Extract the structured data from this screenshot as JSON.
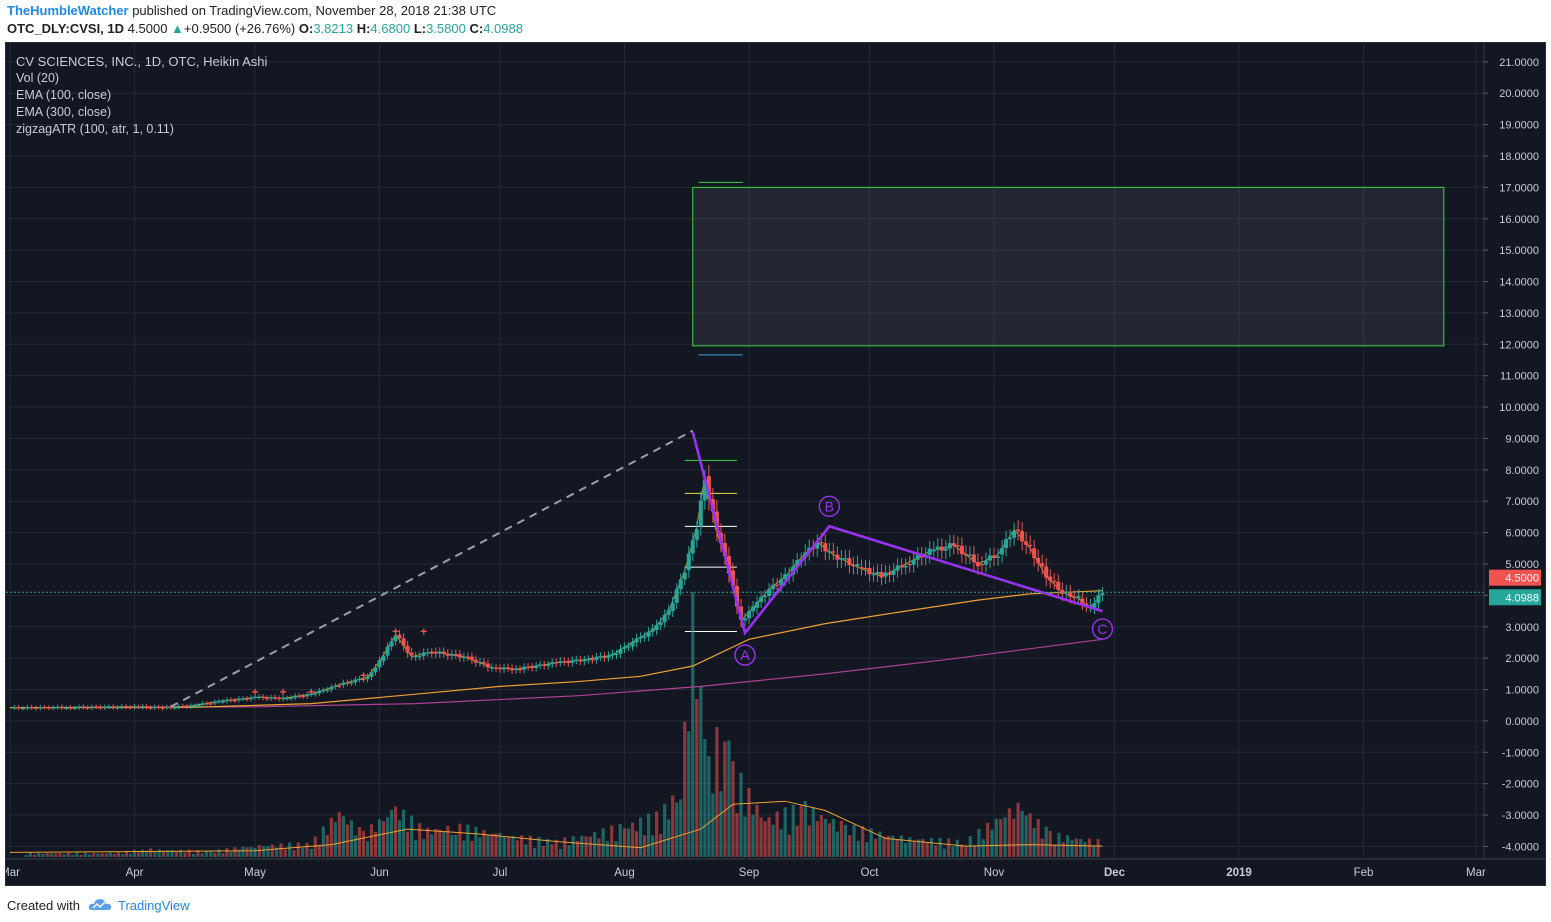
{
  "header": {
    "author": "TheHumbleWatcher",
    "published_text": " published on TradingView.com, November 28, 2018 21:38 UTC",
    "symbol": "OTC_DLY:CVSI, 1D",
    "last": "4.5000",
    "up_arrow": "▲",
    "change": "+0.9500 (+26.76%)",
    "o_label": "O:",
    "o_value": "3.8213",
    "h_label": "H:",
    "h_value": "4.6800",
    "l_label": "L:",
    "l_value": "3.5800",
    "c_label": "C:",
    "c_value": "4.0988"
  },
  "legend": {
    "title": "CV SCIENCES, INC., 1D, OTC, Heikin Ashi",
    "vol": "Vol (20)",
    "ema100": "EMA (100, close)",
    "ema300": "EMA (300, close)",
    "zigzag": "zigzagATR (100, atr, 1, 0.11)"
  },
  "footer": {
    "created_with": "Created with",
    "brand": "TradingView"
  },
  "colors": {
    "background": "#131722",
    "grid": "#252a36",
    "up": "#26a69a",
    "down": "#ef5350",
    "ema100": "#f0a030",
    "ema300": "#b0409a",
    "zigzag": "#9932f0",
    "box": "#3cd43c",
    "price_label_red": "#ef5350",
    "price_label_green": "#26a69a"
  },
  "chart_data": {
    "type": "candlestick",
    "title": "CV SCIENCES, INC., 1D, OTC, Heikin Ashi",
    "y_axis": {
      "ticks": [
        "21.0000",
        "20.0000",
        "19.0000",
        "18.0000",
        "17.0000",
        "16.0000",
        "15.0000",
        "14.0000",
        "13.0000",
        "12.0000",
        "11.0000",
        "10.0000",
        "9.0000",
        "8.0000",
        "7.0000",
        "6.0000",
        "5.0000",
        "4.0000",
        "3.0000",
        "2.0000",
        "1.0000",
        "0.0000",
        "-1.0000",
        "-2.0000",
        "-3.0000",
        "-4.0000"
      ],
      "range": [
        -4.4,
        21.6
      ]
    },
    "x_axis": {
      "ticks": [
        "Mar",
        "Apr",
        "May",
        "Jun",
        "Jul",
        "Aug",
        "Sep",
        "Oct",
        "Nov",
        "Dec",
        "2019",
        "Feb",
        "Mar"
      ],
      "bold_ticks": [
        "Dec",
        "2019"
      ],
      "range": [
        "2018-02-28",
        "2019-03-03"
      ]
    },
    "price_labels": [
      {
        "value": 4.5,
        "text": "4.5000",
        "color": "red"
      },
      {
        "value": 4.0988,
        "text": "4.0988",
        "color": "green"
      }
    ],
    "price_path": [
      [
        "2018-03-01",
        0.42
      ],
      [
        "2018-03-15",
        0.43
      ],
      [
        "2018-04-01",
        0.45
      ],
      [
        "2018-04-08",
        0.42
      ],
      [
        "2018-04-15",
        0.48
      ],
      [
        "2018-04-22",
        0.62
      ],
      [
        "2018-05-01",
        0.75
      ],
      [
        "2018-05-08",
        0.72
      ],
      [
        "2018-05-15",
        0.85
      ],
      [
        "2018-05-22",
        1.15
      ],
      [
        "2018-05-29",
        1.4
      ],
      [
        "2018-06-01",
        1.9
      ],
      [
        "2018-06-05",
        2.75
      ],
      [
        "2018-06-09",
        2.05
      ],
      [
        "2018-06-14",
        2.2
      ],
      [
        "2018-06-22",
        2.05
      ],
      [
        "2018-06-29",
        1.7
      ],
      [
        "2018-07-05",
        1.65
      ],
      [
        "2018-07-15",
        1.85
      ],
      [
        "2018-07-22",
        1.95
      ],
      [
        "2018-07-29",
        2.1
      ],
      [
        "2018-08-03",
        2.5
      ],
      [
        "2018-08-08",
        2.9
      ],
      [
        "2018-08-12",
        3.5
      ],
      [
        "2018-08-16",
        4.8
      ],
      [
        "2018-08-19",
        6.2
      ],
      [
        "2018-08-21",
        7.8
      ],
      [
        "2018-08-24",
        6.0
      ],
      [
        "2018-08-27",
        4.8
      ],
      [
        "2018-08-30",
        3.2
      ],
      [
        "2018-09-02",
        3.6
      ],
      [
        "2018-09-06",
        4.2
      ],
      [
        "2018-09-10",
        4.6
      ],
      [
        "2018-09-14",
        5.2
      ],
      [
        "2018-09-18",
        5.7
      ],
      [
        "2018-09-22",
        5.3
      ],
      [
        "2018-09-28",
        4.9
      ],
      [
        "2018-10-04",
        4.6
      ],
      [
        "2018-10-10",
        5.0
      ],
      [
        "2018-10-16",
        5.4
      ],
      [
        "2018-10-22",
        5.6
      ],
      [
        "2018-10-28",
        5.0
      ],
      [
        "2018-11-02",
        5.3
      ],
      [
        "2018-11-06",
        6.1
      ],
      [
        "2018-11-10",
        5.5
      ],
      [
        "2018-11-14",
        4.6
      ],
      [
        "2018-11-18",
        4.1
      ],
      [
        "2018-11-22",
        3.9
      ],
      [
        "2018-11-25",
        3.6
      ],
      [
        "2018-11-28",
        4.1
      ]
    ],
    "ema100": [
      [
        "2018-03-01",
        0.42
      ],
      [
        "2018-04-15",
        0.43
      ],
      [
        "2018-05-15",
        0.55
      ],
      [
        "2018-06-10",
        0.85
      ],
      [
        "2018-07-01",
        1.1
      ],
      [
        "2018-07-20",
        1.25
      ],
      [
        "2018-08-05",
        1.42
      ],
      [
        "2018-08-18",
        1.75
      ],
      [
        "2018-09-01",
        2.6
      ],
      [
        "2018-09-20",
        3.1
      ],
      [
        "2018-10-10",
        3.5
      ],
      [
        "2018-10-28",
        3.85
      ],
      [
        "2018-11-10",
        4.05
      ],
      [
        "2018-11-28",
        4.15
      ]
    ],
    "ema300": [
      [
        "2018-03-01",
        0.42
      ],
      [
        "2018-05-01",
        0.45
      ],
      [
        "2018-06-10",
        0.55
      ],
      [
        "2018-07-20",
        0.8
      ],
      [
        "2018-08-20",
        1.1
      ],
      [
        "2018-09-20",
        1.5
      ],
      [
        "2018-10-20",
        1.95
      ],
      [
        "2018-11-28",
        2.6
      ]
    ],
    "zigzag_abc": [
      {
        "date": "2018-08-18",
        "value": 9.2,
        "label": ""
      },
      {
        "date": "2018-08-31",
        "value": 2.8,
        "label": "A"
      },
      {
        "date": "2018-09-21",
        "value": 6.2,
        "label": "B"
      },
      {
        "date": "2018-11-28",
        "value": 3.5,
        "label": "C"
      }
    ],
    "dashed_projection": [
      [
        "2018-04-10",
        0.45
      ],
      [
        "2018-08-18",
        9.25
      ]
    ],
    "target_box": {
      "from": "2018-08-18",
      "to": "2019-02-21",
      "low": 11.95,
      "high": 17.0
    },
    "fib_levels": [
      8.3,
      7.25,
      6.2,
      4.9,
      2.85
    ],
    "volume": [
      [
        "2018-03-05",
        0.1
      ],
      [
        "2018-03-25",
        0.1
      ],
      [
        "2018-04-05",
        0.2
      ],
      [
        "2018-04-20",
        0.15
      ],
      [
        "2018-05-01",
        0.3
      ],
      [
        "2018-05-15",
        0.35
      ],
      [
        "2018-05-22",
        1.2
      ],
      [
        "2018-05-28",
        0.6
      ],
      [
        "2018-06-05",
        1.3
      ],
      [
        "2018-06-12",
        0.7
      ],
      [
        "2018-06-20",
        0.8
      ],
      [
        "2018-07-01",
        0.6
      ],
      [
        "2018-07-15",
        0.4
      ],
      [
        "2018-08-01",
        0.8
      ],
      [
        "2018-08-10",
        1.1
      ],
      [
        "2018-08-15",
        1.8
      ],
      [
        "2018-08-18",
        6.3
      ],
      [
        "2018-08-22",
        2.4
      ],
      [
        "2018-08-26",
        3.6
      ],
      [
        "2018-08-29",
        2.1
      ],
      [
        "2018-09-05",
        1.0
      ],
      [
        "2018-09-15",
        1.3
      ],
      [
        "2018-09-25",
        0.8
      ],
      [
        "2018-10-10",
        0.5
      ],
      [
        "2018-10-25",
        0.4
      ],
      [
        "2018-11-07",
        1.4
      ],
      [
        "2018-11-15",
        0.6
      ],
      [
        "2018-11-28",
        0.4
      ]
    ],
    "volume_ma": [
      [
        "2018-03-01",
        0.15
      ],
      [
        "2018-05-01",
        0.2
      ],
      [
        "2018-05-20",
        0.4
      ],
      [
        "2018-06-08",
        0.9
      ],
      [
        "2018-06-25",
        0.75
      ],
      [
        "2018-07-15",
        0.5
      ],
      [
        "2018-08-05",
        0.3
      ],
      [
        "2018-08-20",
        0.9
      ],
      [
        "2018-08-28",
        1.7
      ],
      [
        "2018-09-10",
        1.8
      ],
      [
        "2018-09-20",
        1.5
      ],
      [
        "2018-10-05",
        0.6
      ],
      [
        "2018-10-25",
        0.35
      ],
      [
        "2018-11-10",
        0.4
      ],
      [
        "2018-11-28",
        0.35
      ]
    ]
  }
}
